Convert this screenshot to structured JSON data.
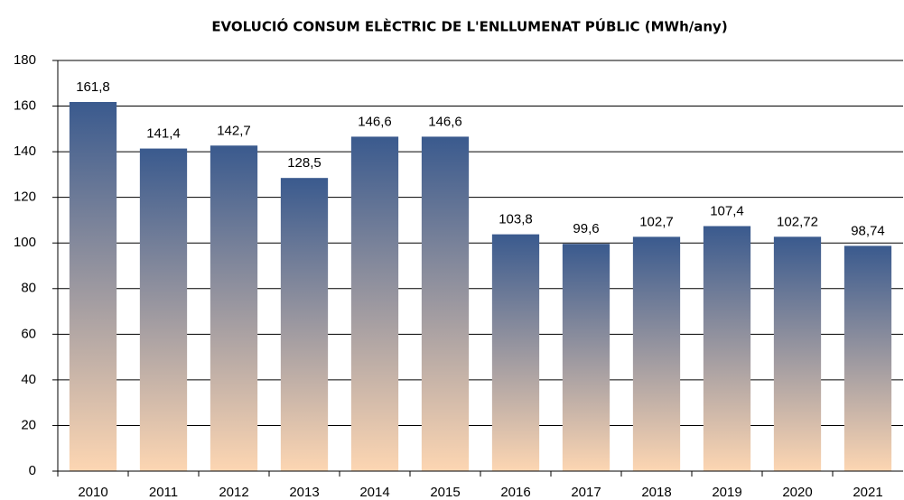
{
  "chart_data": {
    "type": "bar",
    "title": "EVOLUCIÓ CONSUM ELÈCTRIC DE L'ENLLUMENAT PÚBLIC (MWh/any)",
    "categories": [
      "2010",
      "2011",
      "2012",
      "2013",
      "2014",
      "2015",
      "2016",
      "2017",
      "2018",
      "2019",
      "2020",
      "2021"
    ],
    "values": [
      161.8,
      141.4,
      142.7,
      128.5,
      146.6,
      146.6,
      103.8,
      99.6,
      102.7,
      107.4,
      102.72,
      98.74
    ],
    "value_labels": [
      "161,8",
      "141,4",
      "142,7",
      "128,5",
      "146,6",
      "146,6",
      "103,8",
      "99,6",
      "102,7",
      "107,4",
      "102,72",
      "98,74"
    ],
    "colors": [
      "#3a5a8e",
      "#fdd6b2"
    ],
    "ylim": [
      0,
      180
    ],
    "yticks": [
      0,
      20,
      40,
      60,
      80,
      100,
      120,
      140,
      160,
      180
    ],
    "grid": true
  }
}
